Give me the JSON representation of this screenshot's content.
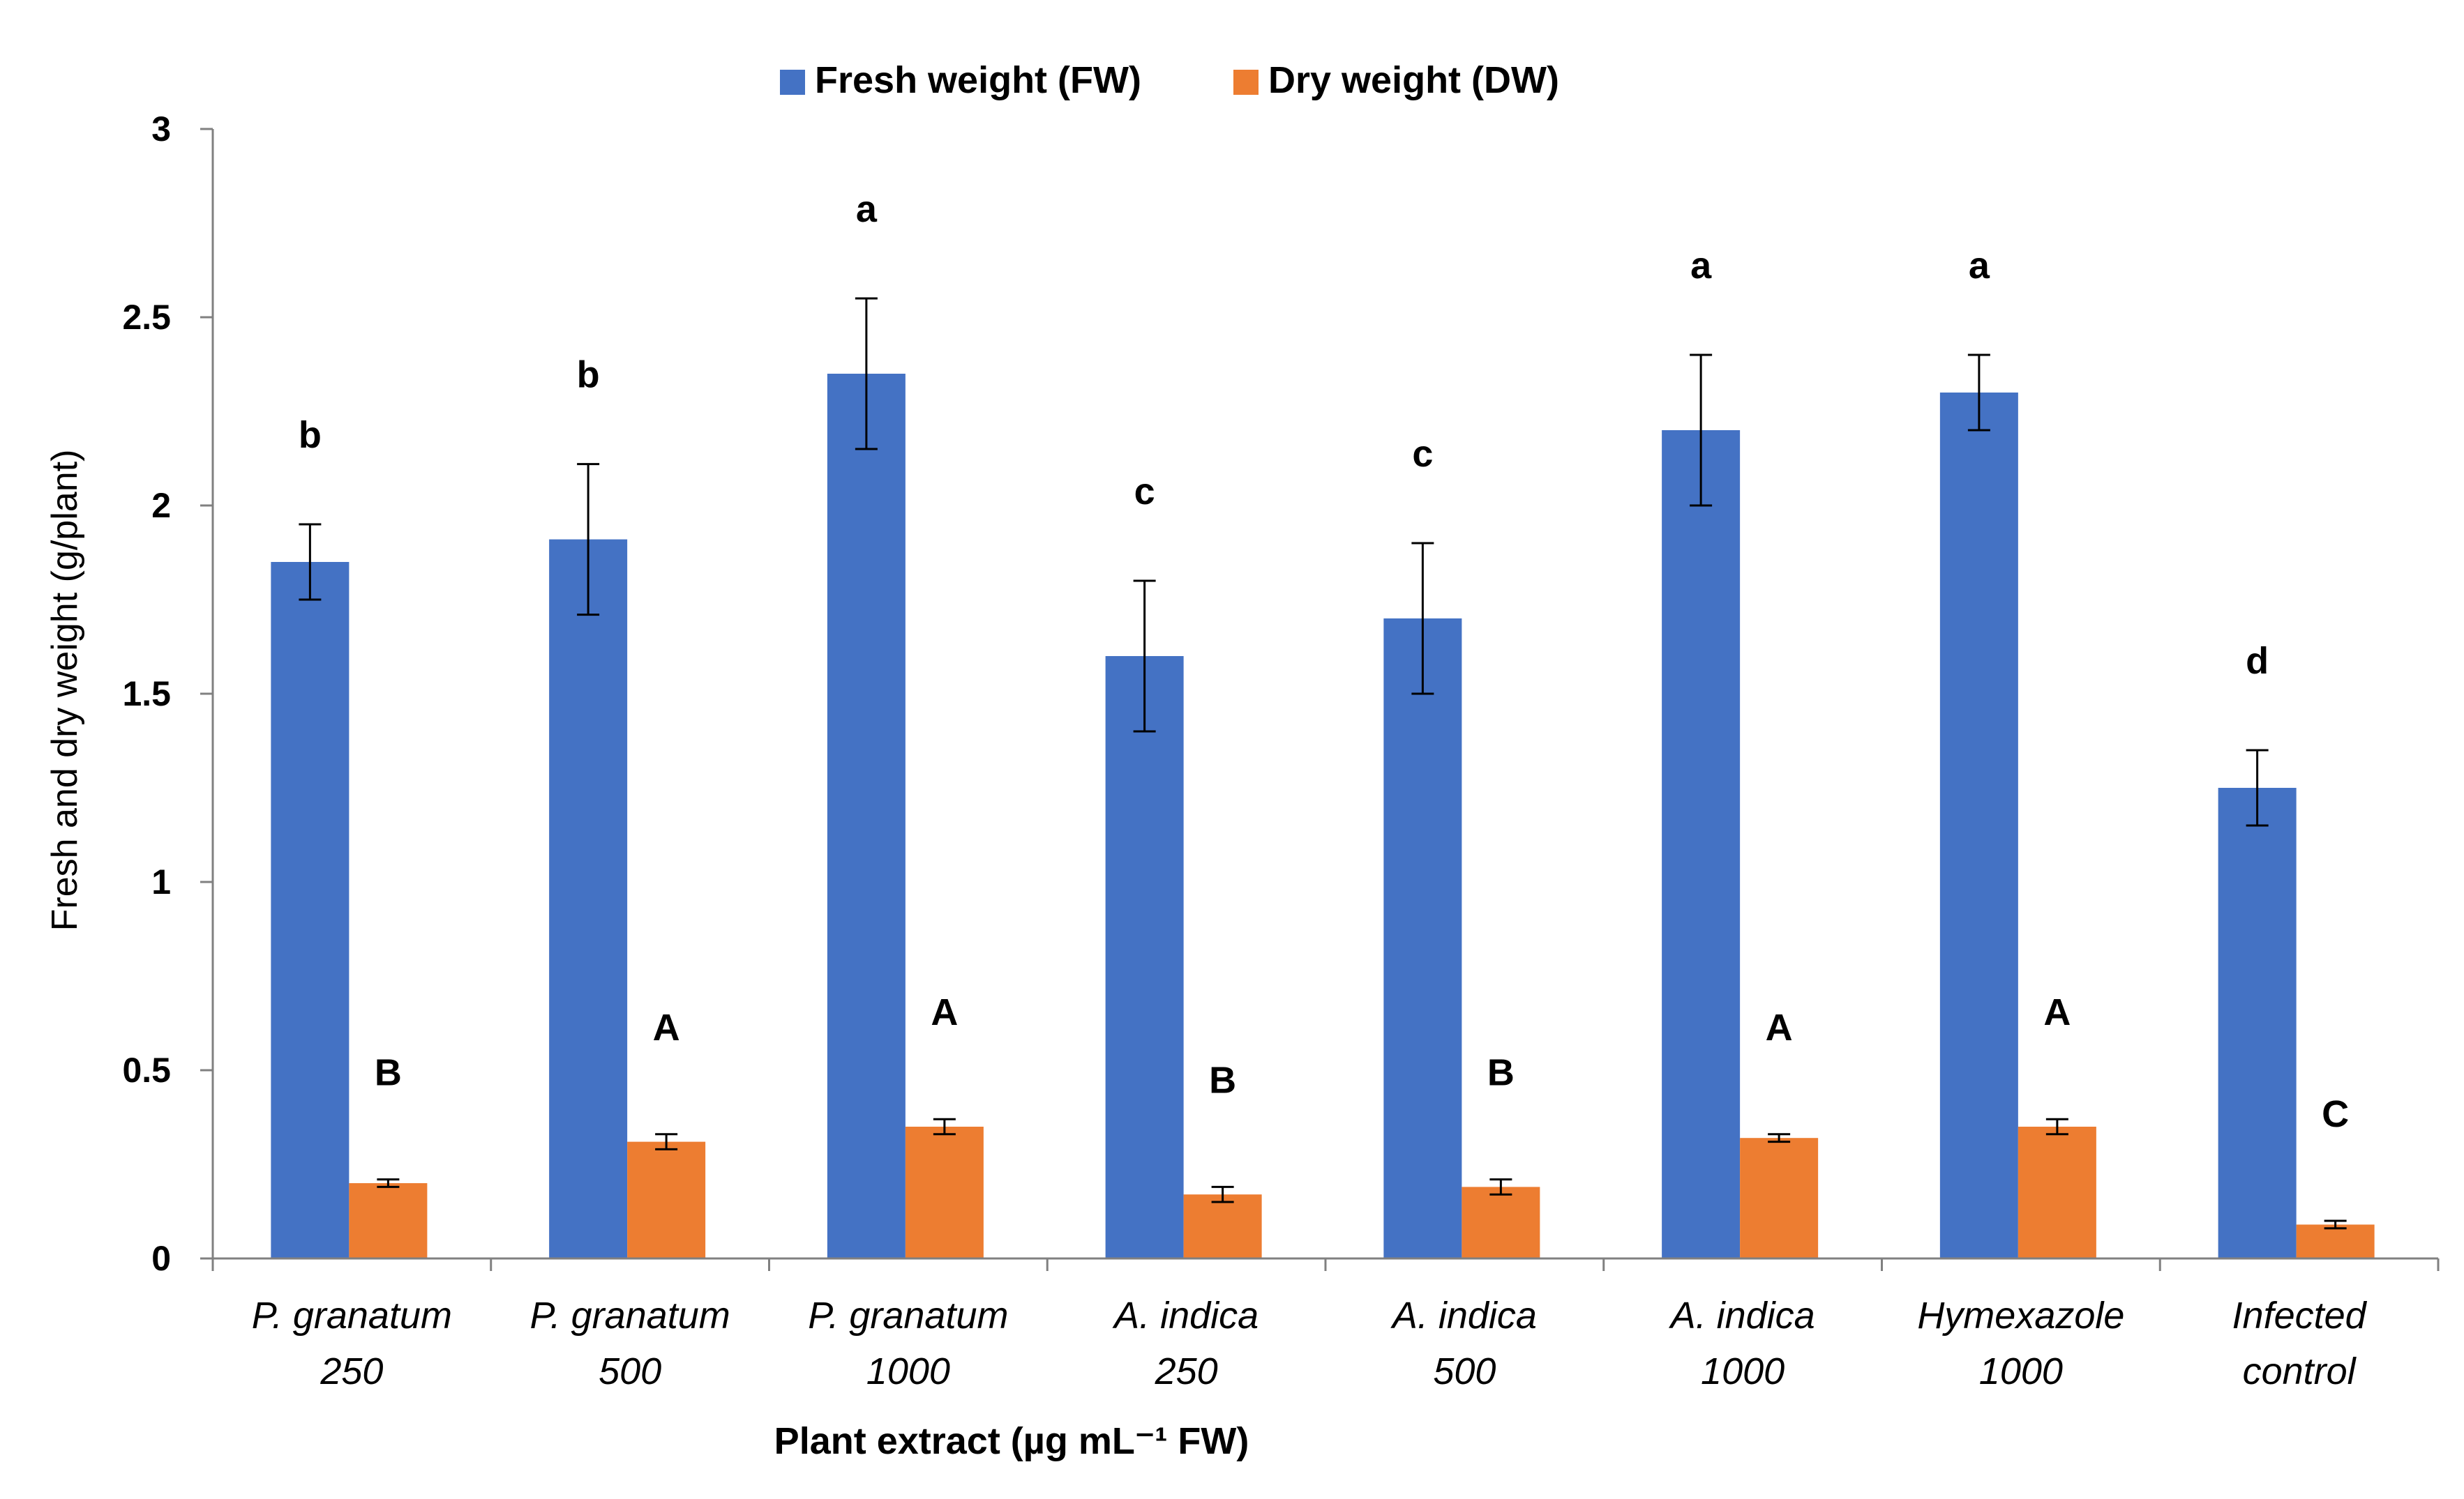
{
  "chart_data": {
    "type": "bar",
    "categories": [
      [
        "P. granatum",
        "250"
      ],
      [
        "P. granatum",
        "500"
      ],
      [
        "P. granatum",
        "1000"
      ],
      [
        "A. indica",
        "250"
      ],
      [
        "A. indica",
        "500"
      ],
      [
        "A. indica",
        "1000"
      ],
      [
        "Hymexazole",
        "1000"
      ],
      [
        "Infected",
        "control"
      ]
    ],
    "series": [
      {
        "name": "Fresh weight (FW)",
        "color": "#4472C4",
        "values": [
          1.85,
          1.91,
          2.35,
          1.6,
          1.7,
          2.2,
          2.3,
          1.25
        ],
        "errors": [
          0.1,
          0.2,
          0.2,
          0.2,
          0.2,
          0.2,
          0.1,
          0.1
        ],
        "letters": [
          "b",
          "b",
          "a",
          "c",
          "c",
          "a",
          "a",
          "d"
        ]
      },
      {
        "name": "Dry weight (DW)",
        "color": "#ED7D31",
        "values": [
          0.2,
          0.31,
          0.35,
          0.17,
          0.19,
          0.32,
          0.35,
          0.09
        ],
        "errors": [
          0.01,
          0.02,
          0.02,
          0.02,
          0.02,
          0.01,
          0.02,
          0.01
        ],
        "letters": [
          "B",
          "A",
          "A",
          "B",
          "B",
          "A",
          "A",
          "C"
        ]
      }
    ],
    "xlabel": "Plant extract (µg mL⁻¹ FW)",
    "ylabel": "Fresh and dry weight (g/plant)",
    "ylim": [
      0,
      3
    ],
    "yticks": [
      0,
      0.5,
      1,
      1.5,
      2,
      2.5,
      3
    ],
    "ytick_labels": [
      "0",
      "0.5",
      "1",
      "1.5",
      "2",
      "2.5",
      "3"
    ],
    "legend_position": "top-center",
    "grid": false
  }
}
